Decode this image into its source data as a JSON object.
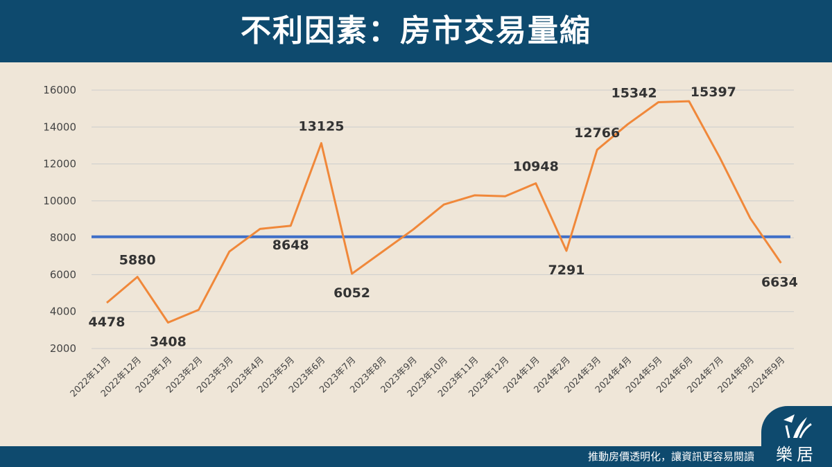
{
  "header": {
    "title": "不利因素：房市交易量縮"
  },
  "footer": {
    "slogan": "推動房價透明化，讓資訊更容易閱讀",
    "logo_text": "樂居"
  },
  "colors": {
    "header_bg": "#0e4a6e",
    "background": "#efe6d8",
    "series_line": "#f0883a",
    "reference_line": "#3f6fc8",
    "grid": "#cccccc"
  },
  "icons": {
    "logo": "leju-logo-icon"
  },
  "chart_data": {
    "type": "line",
    "title": "",
    "xlabel": "",
    "ylabel": "",
    "ylim": [
      2000,
      16000
    ],
    "yticks": [
      2000,
      4000,
      6000,
      8000,
      10000,
      12000,
      14000,
      16000
    ],
    "grid": true,
    "legend": "none",
    "categories": [
      "2022年11月",
      "2022年12月",
      "2023年1月",
      "2023年2月",
      "2023年3月",
      "2023年4月",
      "2023年5月",
      "2023年6月",
      "2023年7月",
      "2023年8月",
      "2023年9月",
      "2023年10月",
      "2023年11月",
      "2023年12月",
      "2024年1月",
      "2024年2月",
      "2024年3月",
      "2024年4月",
      "2024年5月",
      "2024年6月",
      "2024年7月",
      "2024年8月",
      "2024年9月"
    ],
    "series": [
      {
        "values": [
          4478,
          5880,
          3408,
          4100,
          7250,
          8480,
          8648,
          13125,
          6052,
          7250,
          8450,
          9800,
          10300,
          10250,
          10948,
          7291,
          12766,
          14150,
          15342,
          15397,
          12350,
          9050,
          6634
        ]
      }
    ],
    "data_labels": [
      {
        "index": 0,
        "text": "4478",
        "pos": "below"
      },
      {
        "index": 1,
        "text": "5880",
        "pos": "above"
      },
      {
        "index": 2,
        "text": "3408",
        "pos": "below"
      },
      {
        "index": 6,
        "text": "8648",
        "pos": "below"
      },
      {
        "index": 7,
        "text": "13125",
        "pos": "above"
      },
      {
        "index": 8,
        "text": "6052",
        "pos": "below"
      },
      {
        "index": 14,
        "text": "10948",
        "pos": "above"
      },
      {
        "index": 15,
        "text": "7291",
        "pos": "below"
      },
      {
        "index": 16,
        "text": "12766",
        "pos": "above"
      },
      {
        "index": 18,
        "text": "15342",
        "pos": "above-left"
      },
      {
        "index": 19,
        "text": "15397",
        "pos": "above-right"
      },
      {
        "index": 22,
        "text": "6634",
        "pos": "below"
      }
    ],
    "reference_line": {
      "y": 8050
    }
  }
}
